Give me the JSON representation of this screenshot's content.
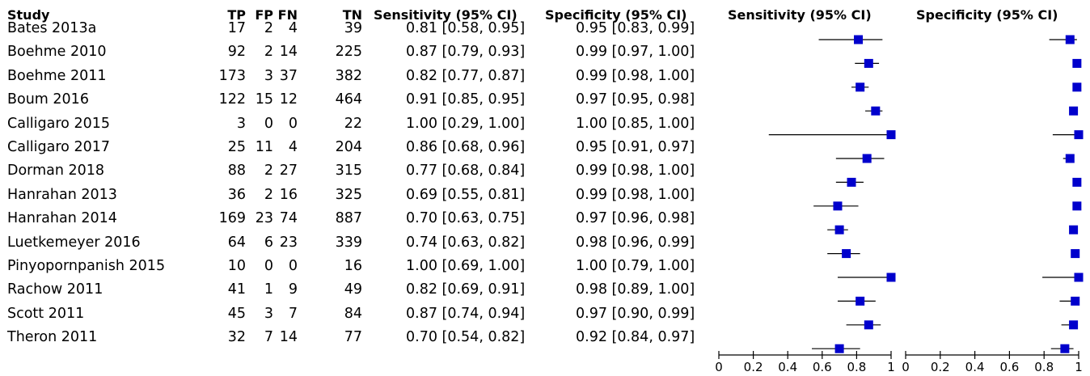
{
  "headers": {
    "study": "Study",
    "tp": "TP",
    "fp": "FP",
    "fn": "FN",
    "tn": "TN",
    "sensitivity_ci": "Sensitivity (95% CI)",
    "specificity_ci": "Specificity (95% CI)",
    "plot_sensitivity": "Sensitivity (95% CI)",
    "plot_specificity": "Specificity (95% CI)"
  },
  "rows": [
    {
      "study": "Bates 2013a",
      "tp": "17",
      "fp": "2",
      "fn": "4",
      "tn": "39",
      "sens_text": "0.81 [0.58, 0.95]",
      "spec_text": "0.95 [0.83, 0.99]"
    },
    {
      "study": "Boehme 2010",
      "tp": "92",
      "fp": "2",
      "fn": "14",
      "tn": "225",
      "sens_text": "0.87 [0.79, 0.93]",
      "spec_text": "0.99 [0.97, 1.00]"
    },
    {
      "study": "Boehme 2011",
      "tp": "173",
      "fp": "3",
      "fn": "37",
      "tn": "382",
      "sens_text": "0.82 [0.77, 0.87]",
      "spec_text": "0.99 [0.98, 1.00]"
    },
    {
      "study": "Boum 2016",
      "tp": "122",
      "fp": "15",
      "fn": "12",
      "tn": "464",
      "sens_text": "0.91 [0.85, 0.95]",
      "spec_text": "0.97 [0.95, 0.98]"
    },
    {
      "study": "Calligaro 2015",
      "tp": "3",
      "fp": "0",
      "fn": "0",
      "tn": "22",
      "sens_text": "1.00 [0.29, 1.00]",
      "spec_text": "1.00 [0.85, 1.00]"
    },
    {
      "study": "Calligaro 2017",
      "tp": "25",
      "fp": "11",
      "fn": "4",
      "tn": "204",
      "sens_text": "0.86 [0.68, 0.96]",
      "spec_text": "0.95 [0.91, 0.97]"
    },
    {
      "study": "Dorman 2018",
      "tp": "88",
      "fp": "2",
      "fn": "27",
      "tn": "315",
      "sens_text": "0.77 [0.68, 0.84]",
      "spec_text": "0.99 [0.98, 1.00]"
    },
    {
      "study": "Hanrahan 2013",
      "tp": "36",
      "fp": "2",
      "fn": "16",
      "tn": "325",
      "sens_text": "0.69 [0.55, 0.81]",
      "spec_text": "0.99 [0.98, 1.00]"
    },
    {
      "study": "Hanrahan 2014",
      "tp": "169",
      "fp": "23",
      "fn": "74",
      "tn": "887",
      "sens_text": "0.70 [0.63, 0.75]",
      "spec_text": "0.97 [0.96, 0.98]"
    },
    {
      "study": "Luetkemeyer 2016",
      "tp": "64",
      "fp": "6",
      "fn": "23",
      "tn": "339",
      "sens_text": "0.74 [0.63, 0.82]",
      "spec_text": "0.98 [0.96, 0.99]"
    },
    {
      "study": "Pinyopornpanish 2015",
      "tp": "10",
      "fp": "0",
      "fn": "0",
      "tn": "16",
      "sens_text": "1.00 [0.69, 1.00]",
      "spec_text": "1.00 [0.79, 1.00]"
    },
    {
      "study": "Rachow 2011",
      "tp": "41",
      "fp": "1",
      "fn": "9",
      "tn": "49",
      "sens_text": "0.82 [0.69, 0.91]",
      "spec_text": "0.98 [0.89, 1.00]"
    },
    {
      "study": "Scott 2011",
      "tp": "45",
      "fp": "3",
      "fn": "7",
      "tn": "84",
      "sens_text": "0.87 [0.74, 0.94]",
      "spec_text": "0.97 [0.90, 0.99]"
    },
    {
      "study": "Theron 2011",
      "tp": "32",
      "fp": "7",
      "fn": "14",
      "tn": "77",
      "sens_text": "0.70 [0.54, 0.82]",
      "spec_text": "0.92 [0.84, 0.97]"
    }
  ],
  "chart_data": [
    {
      "type": "forest",
      "title": "Sensitivity (95% CI)",
      "xlim": [
        0,
        1
      ],
      "ticks": [
        "0",
        "0.2",
        "0.4",
        "0.6",
        "0.8",
        "1"
      ],
      "marker_color": "#0000cc",
      "categories": [
        "Bates 2013a",
        "Boehme 2010",
        "Boehme 2011",
        "Boum 2016",
        "Calligaro 2015",
        "Calligaro 2017",
        "Dorman 2018",
        "Hanrahan 2013",
        "Hanrahan 2014",
        "Luetkemeyer 2016",
        "Pinyopornpanish 2015",
        "Rachow 2011",
        "Scott 2011",
        "Theron 2011"
      ],
      "values": [
        0.81,
        0.87,
        0.82,
        0.91,
        1.0,
        0.86,
        0.77,
        0.69,
        0.7,
        0.74,
        1.0,
        0.82,
        0.87,
        0.7
      ],
      "lower": [
        0.58,
        0.79,
        0.77,
        0.85,
        0.29,
        0.68,
        0.68,
        0.55,
        0.63,
        0.63,
        0.69,
        0.69,
        0.74,
        0.54
      ],
      "upper": [
        0.95,
        0.93,
        0.87,
        0.95,
        1.0,
        0.96,
        0.84,
        0.81,
        0.75,
        0.82,
        1.0,
        0.91,
        0.94,
        0.82
      ]
    },
    {
      "type": "forest",
      "title": "Specificity (95% CI)",
      "xlim": [
        0,
        1
      ],
      "ticks": [
        "0",
        "0.2",
        "0.4",
        "0.6",
        "0.8",
        "1"
      ],
      "marker_color": "#0000cc",
      "categories": [
        "Bates 2013a",
        "Boehme 2010",
        "Boehme 2011",
        "Boum 2016",
        "Calligaro 2015",
        "Calligaro 2017",
        "Dorman 2018",
        "Hanrahan 2013",
        "Hanrahan 2014",
        "Luetkemeyer 2016",
        "Pinyopornpanish 2015",
        "Rachow 2011",
        "Scott 2011",
        "Theron 2011"
      ],
      "values": [
        0.95,
        0.99,
        0.99,
        0.97,
        1.0,
        0.95,
        0.99,
        0.99,
        0.97,
        0.98,
        1.0,
        0.98,
        0.97,
        0.92
      ],
      "lower": [
        0.83,
        0.97,
        0.98,
        0.95,
        0.85,
        0.91,
        0.98,
        0.98,
        0.96,
        0.96,
        0.79,
        0.89,
        0.9,
        0.84
      ],
      "upper": [
        0.99,
        1.0,
        1.0,
        0.98,
        1.0,
        0.97,
        1.0,
        1.0,
        0.98,
        0.99,
        1.0,
        1.0,
        0.99,
        0.97
      ]
    }
  ]
}
